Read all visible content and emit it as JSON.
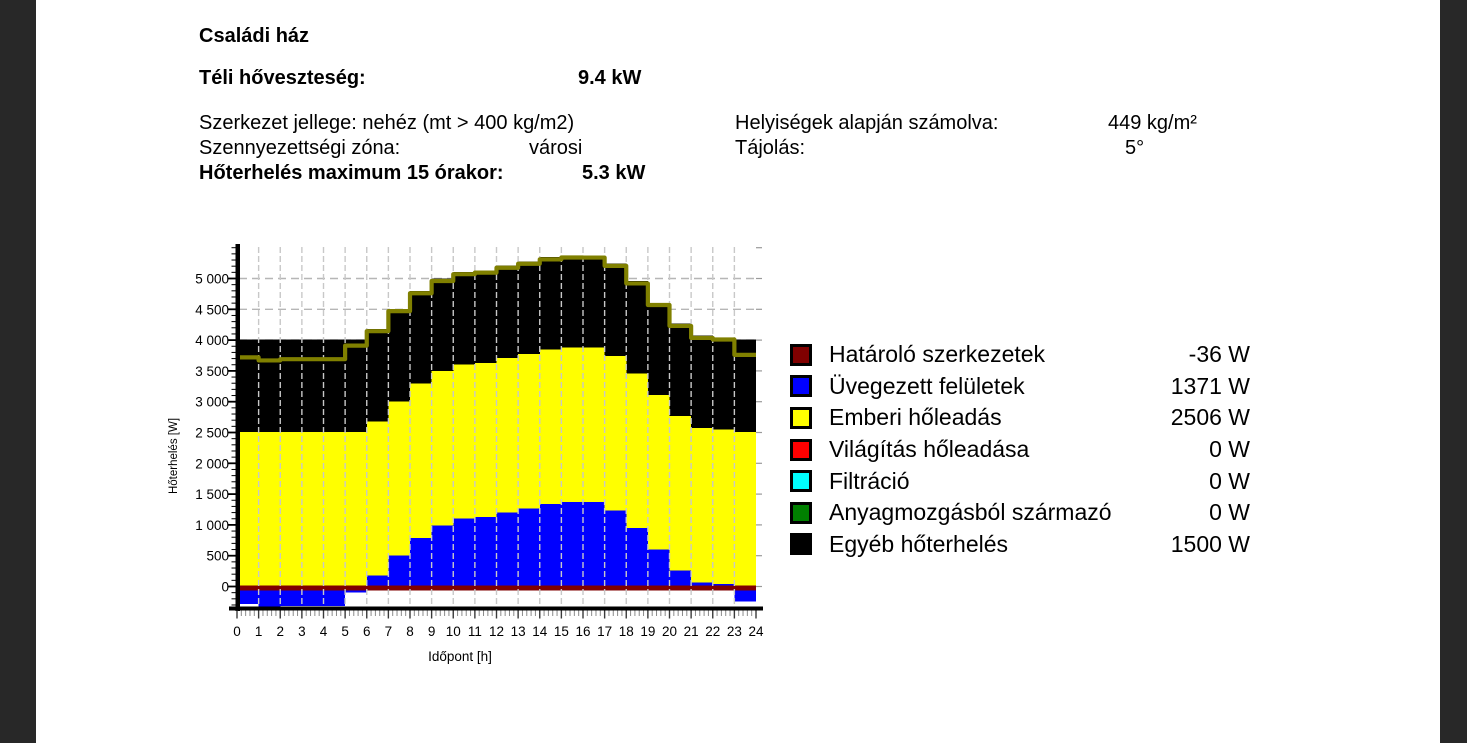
{
  "page": {
    "background": "#ffffff",
    "side_band_color": "#282828"
  },
  "header": {
    "title": "Családi ház",
    "winter_loss_label": "Téli hőveszteség:",
    "winter_loss_value": "9.4 kW",
    "structure_label": "Szerkezet jellege: nehéz (mt > 400 kg/m2)",
    "pollution_label": "Szennyezettségi zóna:",
    "pollution_value": "városi",
    "heatload_max_label": "Hőterhelés maximum 15 órakor:",
    "heatload_max_value": "5.3 kW",
    "rooms_label": "Helyiségek alapján számolva:",
    "rooms_value": "449 kg/m²",
    "orientation_label": "Tájolás:",
    "orientation_value": "5°"
  },
  "legend": {
    "items": [
      {
        "label": "Határoló szerkezetek",
        "value": "-36 W",
        "color": "#800000"
      },
      {
        "label": "Üvegezett felületek",
        "value": "1371 W",
        "color": "#0000ff"
      },
      {
        "label": "Emberi hőleadás",
        "value": "2506 W",
        "color": "#ffff00"
      },
      {
        "label": "Világítás hőleadása",
        "value": "0 W",
        "color": "#ff0000"
      },
      {
        "label": "Filtráció",
        "value": "0 W",
        "color": "#00ffff"
      },
      {
        "label": "Anyagmozgásból származó",
        "value": "0 W",
        "color": "#008000"
      },
      {
        "label": "Egyéb hőterhelés",
        "value": "1500 W",
        "color": "#000000"
      }
    ]
  },
  "chart_data": {
    "type": "bar",
    "stacked": true,
    "xlabel": "Időpont [h]",
    "ylabel": "Hőterhelés [W]",
    "ylim": [
      -350,
      5510
    ],
    "grid": true,
    "legend_position": "right",
    "x_hours": [
      0,
      1,
      2,
      3,
      4,
      5,
      6,
      7,
      8,
      9,
      10,
      11,
      12,
      13,
      14,
      15,
      16,
      17,
      18,
      19,
      20,
      21,
      22,
      23
    ],
    "xtick_labels": [
      "0",
      "1",
      "2",
      "3",
      "4",
      "5",
      "6",
      "7",
      "8",
      "9",
      "10",
      "11",
      "12",
      "13",
      "14",
      "15",
      "16",
      "17",
      "18",
      "19",
      "20",
      "21",
      "22",
      "23",
      "24"
    ],
    "ytick_values": [
      0,
      500,
      1000,
      1500,
      2000,
      2500,
      3000,
      3500,
      4000,
      4500,
      5000
    ],
    "ytick_labels": [
      "0",
      "500",
      "1 000",
      "1 500",
      "2 000",
      "2 500",
      "3 000",
      "3 500",
      "4 000",
      "4 500",
      "5 000"
    ],
    "series": [
      {
        "name": "Határoló szerkezetek",
        "color": "#800000",
        "values": [
          -36,
          -36,
          -36,
          -36,
          -36,
          -36,
          -36,
          -36,
          -36,
          -36,
          -36,
          -36,
          -36,
          -36,
          -36,
          -36,
          -36,
          -36,
          -36,
          -36,
          -36,
          -36,
          -36,
          -36
        ]
      },
      {
        "name": "Üvegezett felületek",
        "color": "#0000ff",
        "values": [
          -250,
          -300,
          -280,
          -280,
          -280,
          -60,
          175,
          500,
          790,
          990,
          1100,
          1125,
          1205,
          1270,
          1340,
          1371,
          1370,
          1235,
          950,
          600,
          260,
          65,
          40,
          -210
        ]
      },
      {
        "name": "Emberi hőleadás",
        "color": "#ffff00",
        "values": [
          2506,
          2506,
          2506,
          2506,
          2506,
          2506,
          2506,
          2506,
          2506,
          2506,
          2506,
          2506,
          2506,
          2506,
          2506,
          2506,
          2506,
          2506,
          2506,
          2506,
          2506,
          2506,
          2506,
          2506
        ]
      },
      {
        "name": "Világítás hőleadása",
        "color": "#ff0000",
        "values": [
          0,
          0,
          0,
          0,
          0,
          0,
          0,
          0,
          0,
          0,
          0,
          0,
          0,
          0,
          0,
          0,
          0,
          0,
          0,
          0,
          0,
          0,
          0,
          0
        ]
      },
      {
        "name": "Filtráció",
        "color": "#00ffff",
        "values": [
          0,
          0,
          0,
          0,
          0,
          0,
          0,
          0,
          0,
          0,
          0,
          0,
          0,
          0,
          0,
          0,
          0,
          0,
          0,
          0,
          0,
          0,
          0,
          0
        ]
      },
      {
        "name": "Anyagmozgásból származó",
        "color": "#008000",
        "values": [
          0,
          0,
          0,
          0,
          0,
          0,
          0,
          0,
          0,
          0,
          0,
          0,
          0,
          0,
          0,
          0,
          0,
          0,
          0,
          0,
          0,
          0,
          0,
          0
        ]
      },
      {
        "name": "Egyéb hőterhelés",
        "color": "#000000",
        "values": [
          1500,
          1500,
          1500,
          1500,
          1500,
          1500,
          1500,
          1500,
          1500,
          1500,
          1500,
          1500,
          1500,
          1500,
          1500,
          1500,
          1500,
          1500,
          1500,
          1500,
          1500,
          1500,
          1500,
          1500
        ]
      }
    ],
    "total_line": {
      "color": "#808000",
      "values": [
        3720,
        3670,
        3690,
        3690,
        3690,
        3910,
        4145,
        4470,
        4760,
        4960,
        5070,
        5095,
        5175,
        5240,
        5310,
        5341,
        5340,
        5205,
        4920,
        4570,
        4230,
        4035,
        4010,
        3760
      ]
    }
  }
}
